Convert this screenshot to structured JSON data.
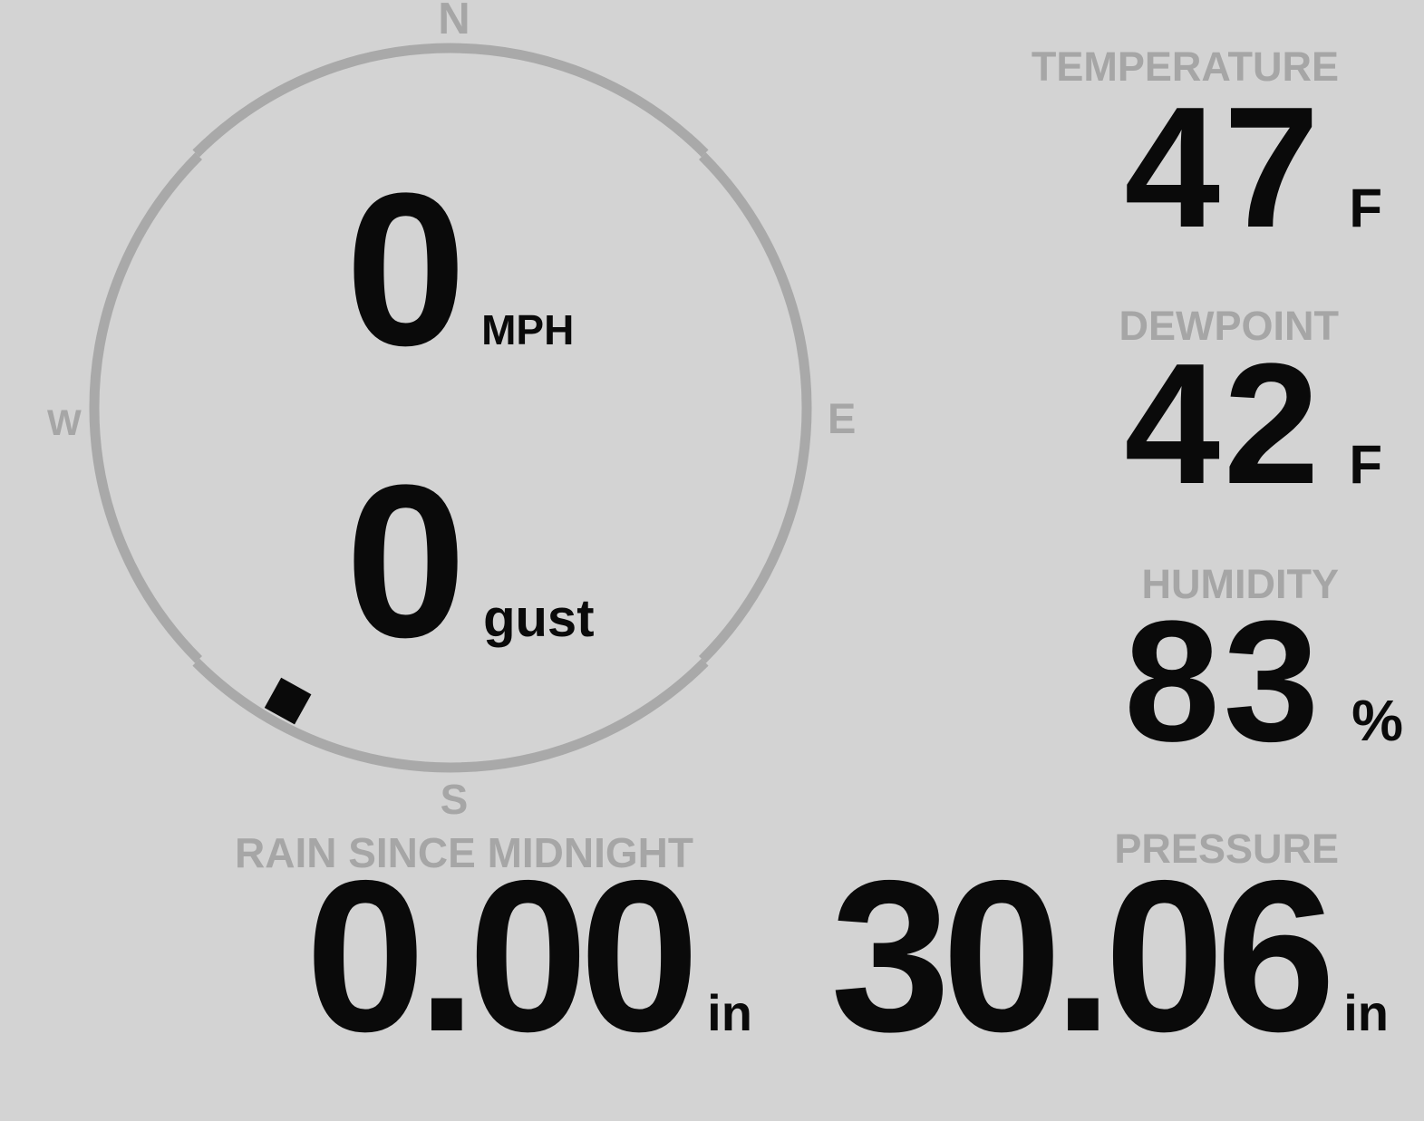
{
  "theme": {
    "background": "#d3d3d3",
    "muted": "#a6a6a6",
    "ring": "#a9a9a9",
    "ink": "#0a0a0a"
  },
  "wind": {
    "speed": {
      "value": "0",
      "unit": "MPH"
    },
    "gust": {
      "value": "0",
      "unit": "gust"
    },
    "compass": {
      "n": "N",
      "e": "E",
      "s": "S",
      "w": "W"
    },
    "direction_deg": 209
  },
  "metrics": {
    "temperature": {
      "label": "TEMPERATURE",
      "value": "47",
      "unit": "F"
    },
    "dewpoint": {
      "label": "DEWPOINT",
      "value": "42",
      "unit": "F"
    },
    "humidity": {
      "label": "HUMIDITY",
      "value": "83",
      "unit": "%"
    },
    "rain": {
      "label": "RAIN SINCE MIDNIGHT",
      "value": "0.00",
      "unit": "in"
    },
    "pressure": {
      "label": "PRESSURE",
      "value": "30.06",
      "unit": "in"
    }
  }
}
